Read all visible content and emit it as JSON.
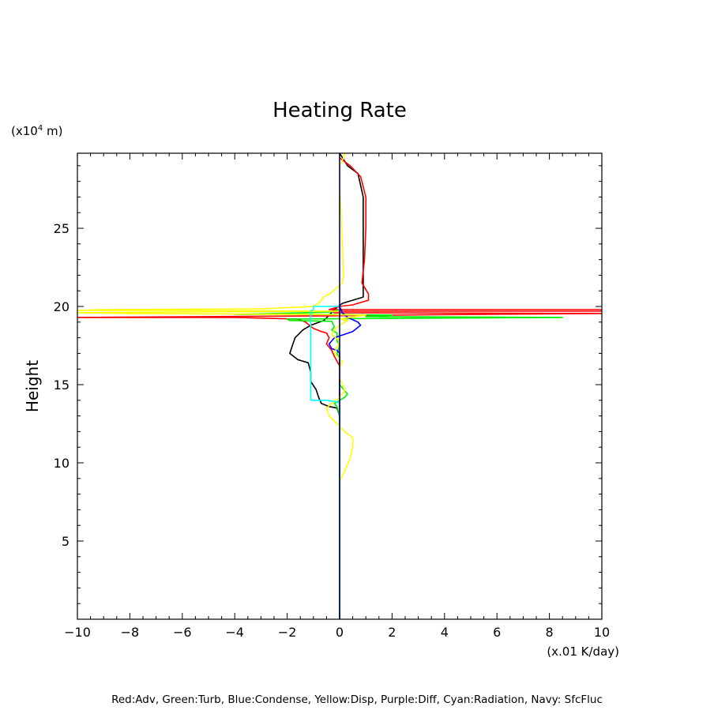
{
  "chart_data": {
    "type": "line",
    "title": "Heating Rate",
    "ylabel": "Height",
    "y_unit_prefix": "(x10",
    "y_unit_exp": "4",
    "y_unit_suffix": " m)",
    "x_unit": "(x.01 K/day)",
    "legend_text": "Red:Adv, Green:Turb, Blue:Condense, Yellow:Disp, Purple:Diff, Cyan:Radiation, Navy: SfcFluc",
    "xlim": [
      -10,
      10
    ],
    "ylim": [
      0,
      29.8
    ],
    "xticks": [
      -10,
      -8,
      -6,
      -4,
      -2,
      0,
      2,
      4,
      6,
      8,
      10
    ],
    "yticks": [
      5,
      10,
      15,
      20,
      25
    ],
    "grid": false,
    "series": [
      {
        "color": "#000000",
        "points": [
          [
            0,
            29.8
          ],
          [
            0.3,
            29
          ],
          [
            0.7,
            28.5
          ],
          [
            0.9,
            27
          ],
          [
            0.9,
            25
          ],
          [
            0.9,
            22
          ],
          [
            0.9,
            20.6
          ],
          [
            0.5,
            20.4
          ],
          [
            0.1,
            20.2
          ],
          [
            -0.2,
            19.8
          ],
          [
            -0.6,
            19.1
          ],
          [
            -1.1,
            18.8
          ],
          [
            -1.4,
            18.5
          ],
          [
            -1.7,
            18
          ],
          [
            -1.8,
            17.5
          ],
          [
            -1.9,
            17
          ],
          [
            -1.6,
            16.6
          ],
          [
            -1.2,
            16.4
          ],
          [
            -1.1,
            15.8
          ],
          [
            -1.1,
            15.2
          ],
          [
            -0.9,
            14.7
          ],
          [
            -0.8,
            14.2
          ],
          [
            -0.7,
            13.8
          ],
          [
            -0.4,
            13.6
          ],
          [
            -0.1,
            13.5
          ],
          [
            0,
            13
          ],
          [
            0,
            9
          ],
          [
            0,
            0
          ]
        ]
      },
      {
        "color": "#ff0000",
        "points": [
          [
            0,
            29.5
          ],
          [
            0.4,
            29
          ],
          [
            0.8,
            28.3
          ],
          [
            1,
            27
          ],
          [
            1,
            25
          ],
          [
            0.95,
            23
          ],
          [
            0.85,
            21.5
          ],
          [
            1.1,
            20.8
          ],
          [
            1.1,
            20.4
          ],
          [
            0.5,
            20.1
          ],
          [
            0,
            20
          ],
          [
            -0.2,
            19.9
          ],
          [
            -0.4,
            19.8
          ],
          [
            10,
            19.8
          ],
          [
            10,
            19.7
          ],
          [
            -0.3,
            19.7
          ],
          [
            -0.2,
            19.6
          ],
          [
            10,
            19.55
          ],
          [
            2,
            19.45
          ],
          [
            -0.5,
            19.4
          ],
          [
            -10,
            19.3
          ],
          [
            -4,
            19.3
          ],
          [
            -1.6,
            19.2
          ],
          [
            -1.3,
            19.0
          ],
          [
            -1,
            18.6
          ],
          [
            -0.7,
            18.4
          ],
          [
            -0.5,
            18.3
          ],
          [
            -0.4,
            18
          ],
          [
            -0.5,
            17.6
          ],
          [
            -0.3,
            17.2
          ],
          [
            -0.2,
            16.8
          ],
          [
            -0.1,
            16.5
          ],
          [
            0,
            16.2
          ],
          [
            0,
            13
          ],
          [
            0,
            0
          ]
        ]
      },
      {
        "color": "#00ee00",
        "points": [
          [
            0,
            19.8
          ],
          [
            -0.3,
            19.65
          ],
          [
            -2.5,
            19.55
          ],
          [
            -4,
            19.5
          ],
          [
            -1,
            19.5
          ],
          [
            2,
            19.45
          ],
          [
            1,
            19.35
          ],
          [
            8.5,
            19.3
          ],
          [
            -2,
            19.2
          ],
          [
            -1.9,
            19.1
          ],
          [
            -0.3,
            19.05
          ],
          [
            -0.2,
            18.7
          ],
          [
            -0.3,
            18.5
          ],
          [
            -0.1,
            18.3
          ],
          [
            -0.1,
            17.8
          ],
          [
            0,
            17.5
          ],
          [
            -0.1,
            17
          ],
          [
            0,
            16.6
          ],
          [
            0,
            15
          ],
          [
            0.2,
            14.6
          ],
          [
            0.3,
            14.4
          ],
          [
            0.2,
            14.2
          ],
          [
            0,
            14
          ],
          [
            -0.2,
            13.8
          ],
          [
            -0.1,
            13.6
          ],
          [
            0,
            13
          ],
          [
            0,
            0
          ]
        ]
      },
      {
        "color": "#0000ff",
        "points": [
          [
            0,
            20
          ],
          [
            0.1,
            19.6
          ],
          [
            0.3,
            19.3
          ],
          [
            0.7,
            19
          ],
          [
            0.8,
            18.8
          ],
          [
            0.5,
            18.4
          ],
          [
            -0.2,
            18.0
          ],
          [
            -0.4,
            17.6
          ],
          [
            -0.3,
            17.3
          ],
          [
            -0.1,
            17.2
          ],
          [
            0,
            17
          ],
          [
            0,
            0
          ]
        ]
      },
      {
        "color": "#ffff00",
        "points": [
          [
            0.2,
            29.8
          ],
          [
            0.1,
            29.3
          ],
          [
            0,
            29
          ],
          [
            0,
            28
          ],
          [
            0.05,
            26
          ],
          [
            0.1,
            24
          ],
          [
            0.15,
            22
          ],
          [
            0.1,
            21.5
          ],
          [
            -0.1,
            21.2
          ],
          [
            -0.3,
            20.9
          ],
          [
            -0.6,
            20.6
          ],
          [
            -0.8,
            20.2
          ],
          [
            -1.0,
            20.0
          ],
          [
            -3,
            19.85
          ],
          [
            -9,
            19.8
          ],
          [
            -10,
            19.75
          ],
          [
            -6,
            19.75
          ],
          [
            0,
            19.7
          ],
          [
            -6,
            19.65
          ],
          [
            -10,
            19.6
          ],
          [
            -8,
            19.55
          ],
          [
            -2,
            19.5
          ],
          [
            1,
            19.45
          ],
          [
            0,
            19.2
          ],
          [
            0.3,
            19.1
          ],
          [
            0,
            18.8
          ],
          [
            -0.2,
            18.5
          ],
          [
            -0.3,
            18.2
          ],
          [
            0,
            17.8
          ],
          [
            -0.1,
            17.4
          ],
          [
            -0.2,
            17
          ],
          [
            0.1,
            16.5
          ],
          [
            0,
            16
          ],
          [
            0,
            15.5
          ],
          [
            0.1,
            15
          ],
          [
            0.2,
            14.6
          ],
          [
            0,
            14.2
          ],
          [
            -0.3,
            13.8
          ],
          [
            -0.5,
            13.5
          ],
          [
            -0.4,
            13
          ],
          [
            -0.1,
            12.5
          ],
          [
            0.2,
            12
          ],
          [
            0.5,
            11.6
          ],
          [
            0.5,
            11
          ],
          [
            0.4,
            10.3
          ],
          [
            0.2,
            9.5
          ],
          [
            0,
            8.8
          ]
        ]
      },
      {
        "color": "#00ffff",
        "points": [
          [
            0,
            20
          ],
          [
            -1,
            20
          ],
          [
            -1,
            19.8
          ],
          [
            -1.1,
            19.7
          ],
          [
            -1.1,
            14
          ],
          [
            -0.5,
            14
          ],
          [
            -0.1,
            13.9
          ],
          [
            0,
            13.8
          ],
          [
            0,
            0
          ]
        ]
      },
      {
        "color": "#000080",
        "points": [
          [
            0,
            29.8
          ],
          [
            0,
            0
          ]
        ]
      }
    ]
  }
}
